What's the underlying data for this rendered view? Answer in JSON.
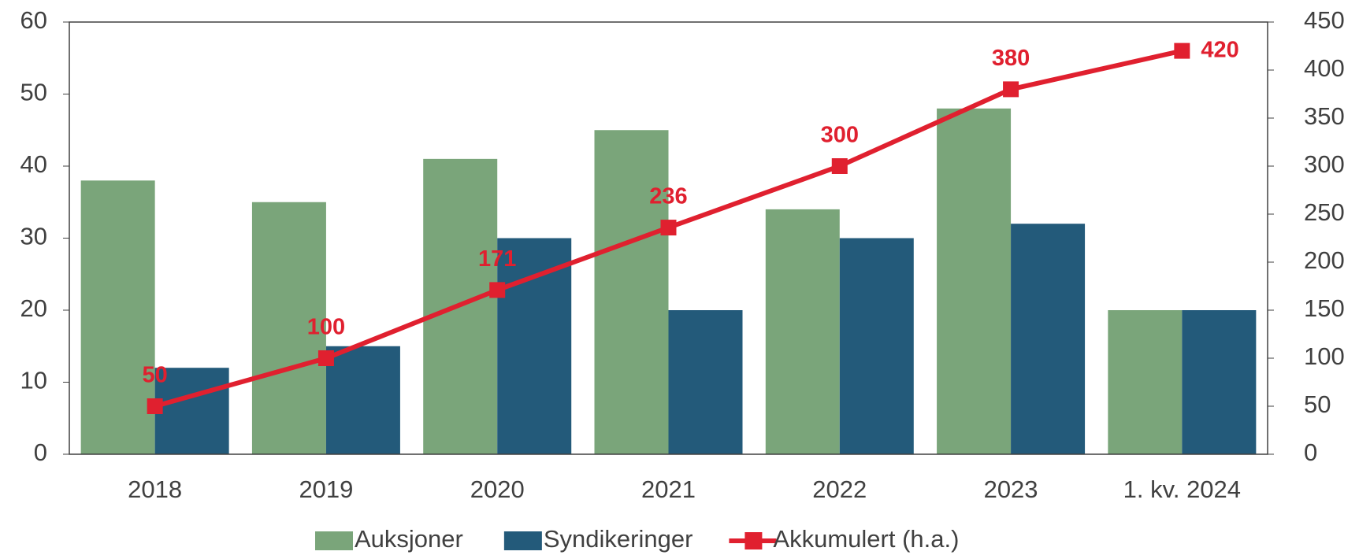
{
  "chart_data": {
    "type": "bar-line",
    "categories": [
      "2018",
      "2019",
      "2020",
      "2021",
      "2022",
      "2023",
      "1. kv. 2024"
    ],
    "series": [
      {
        "name": "Auksjoner",
        "color": "#7aa57a",
        "type": "bar",
        "values": [
          38,
          35,
          41,
          45,
          34,
          48,
          20
        ]
      },
      {
        "name": "Syndikeringer",
        "color": "#235a7a",
        "type": "bar",
        "values": [
          12,
          15,
          30,
          20,
          30,
          32,
          20
        ]
      },
      {
        "name": "Akkumulert (h.a.)",
        "color": "#e0202f",
        "type": "line",
        "axis": "y2",
        "values": [
          50,
          100,
          171,
          236,
          300,
          380,
          420
        ]
      }
    ],
    "ylim": [
      0,
      60
    ],
    "yticks": [
      0,
      10,
      20,
      30,
      40,
      50,
      60
    ],
    "y2lim": [
      0,
      450
    ],
    "y2ticks": [
      0,
      50,
      100,
      150,
      200,
      250,
      300,
      350,
      400,
      450
    ],
    "legend": "bottom"
  }
}
